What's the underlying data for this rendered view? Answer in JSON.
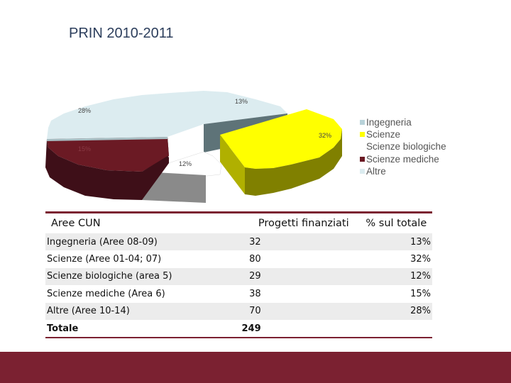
{
  "title": "PRIN 2010-2011",
  "chart_data": {
    "type": "pie",
    "categories": [
      "Ingegneria",
      "Scienze",
      "Scienze biologiche",
      "Scienze mediche",
      "Altre"
    ],
    "values": [
      32,
      80,
      29,
      38,
      70
    ],
    "percent_labels": [
      "13%",
      "32%",
      "12%",
      "15%",
      "28%"
    ],
    "legend_position": "right",
    "colors": {
      "Ingegneria": "#dcecf0",
      "Scienze": "#ffff00",
      "Scienze biologiche": "#ffffff",
      "Scienze mediche": "#6b1a24",
      "Altre": "#dcecf0"
    }
  },
  "legend": [
    {
      "label": "Ingegneria",
      "color": "#b8d3da"
    },
    {
      "label": "Scienze",
      "color": "#ffff00"
    },
    {
      "label": "Scienze biologiche",
      "color": "none"
    },
    {
      "label": "Scienze mediche",
      "color": "#6b1a24"
    },
    {
      "label": "Altre",
      "color": "#dcecf0"
    }
  ],
  "table": {
    "headers": [
      "Aree CUN",
      "Progetti finanziati",
      "% sul totale"
    ],
    "rows": [
      {
        "area": "Ingegneria (Aree 08-09)",
        "count": "32",
        "pct": "13%"
      },
      {
        "area": "Scienze  (Aree 01-04; 07)",
        "count": "80",
        "pct": "32%"
      },
      {
        "area": "Scienze biologiche (area 5)",
        "count": "29",
        "pct": "12%"
      },
      {
        "area": "Scienze mediche (Area 6)",
        "count": "38",
        "pct": "15%"
      },
      {
        "area": "Altre (Aree 10-14)",
        "count": "70",
        "pct": "28%"
      }
    ],
    "total_label": "Totale",
    "total_count": "249"
  }
}
